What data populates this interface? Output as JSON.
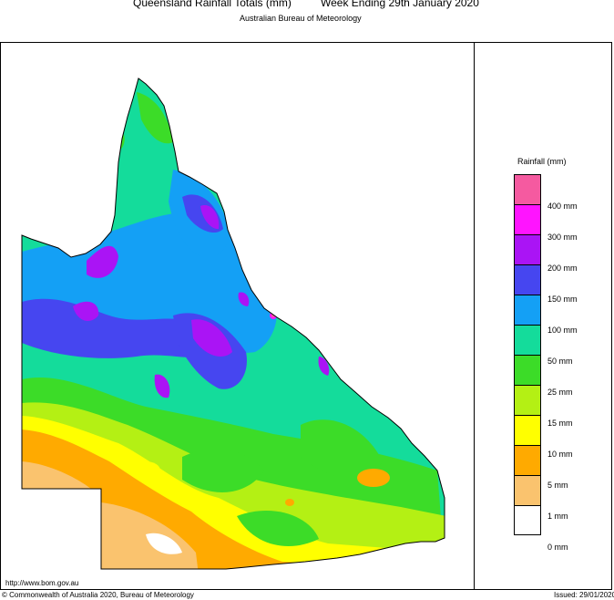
{
  "header": {
    "title": "Queensland Rainfall Totals (mm)",
    "period": "Week Ending 29th January 2020",
    "agency": "Australian Bureau of Meteorology"
  },
  "legend": {
    "title": "Rainfall (mm)",
    "bins": [
      {
        "color": "#f55aa0"
      },
      {
        "color": "#ff14ff"
      },
      {
        "color": "#aa14f5"
      },
      {
        "color": "#4646f0"
      },
      {
        "color": "#14a0f5"
      },
      {
        "color": "#14dc9b"
      },
      {
        "color": "#3cdc28"
      },
      {
        "color": "#b4f014"
      },
      {
        "color": "#ffff00"
      },
      {
        "color": "#ffaa00"
      },
      {
        "color": "#fac36e"
      },
      {
        "color": "#ffffff"
      }
    ],
    "labels": [
      "400 mm",
      "300 mm",
      "200 mm",
      "150 mm",
      "100 mm",
      "50 mm",
      "25 mm",
      "15 mm",
      "10 mm",
      "5 mm",
      "1 mm",
      "0 mm"
    ]
  },
  "footer": {
    "url": "http://www.bom.gov.au",
    "copyright": "© Commonwealth of Australia 2020, Bureau of Meteorology",
    "issued": "Issued: 29/01/2020"
  }
}
